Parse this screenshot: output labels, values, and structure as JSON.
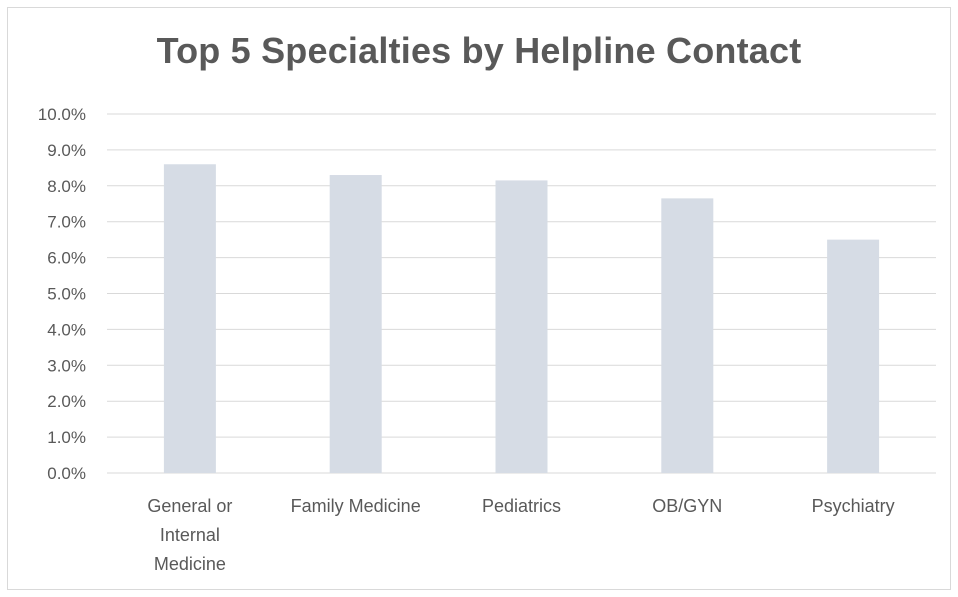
{
  "chart_data": {
    "type": "bar",
    "title": "Top 5 Specialties by Helpline Contact",
    "xlabel": "",
    "ylabel": "",
    "categories": [
      [
        "General or",
        "Internal",
        "Medicine"
      ],
      [
        "Family Medicine"
      ],
      [
        "Pediatrics"
      ],
      [
        "OB/GYN"
      ],
      [
        "Psychiatry"
      ]
    ],
    "values": [
      0.086,
      0.083,
      0.0815,
      0.0765,
      0.065
    ],
    "ylim": [
      0,
      0.1
    ],
    "yticks": [
      0,
      0.01,
      0.02,
      0.03,
      0.04,
      0.05,
      0.06,
      0.07,
      0.08,
      0.09,
      0.1
    ],
    "ytick_labels": [
      "0.0%",
      "1.0%",
      "2.0%",
      "3.0%",
      "4.0%",
      "5.0%",
      "6.0%",
      "7.0%",
      "8.0%",
      "9.0%",
      "10.0%"
    ],
    "grid": true,
    "legend": "none",
    "colors": {
      "bar": "#d6dce5",
      "grid": "#d9d9d9",
      "text": "#595959"
    }
  }
}
